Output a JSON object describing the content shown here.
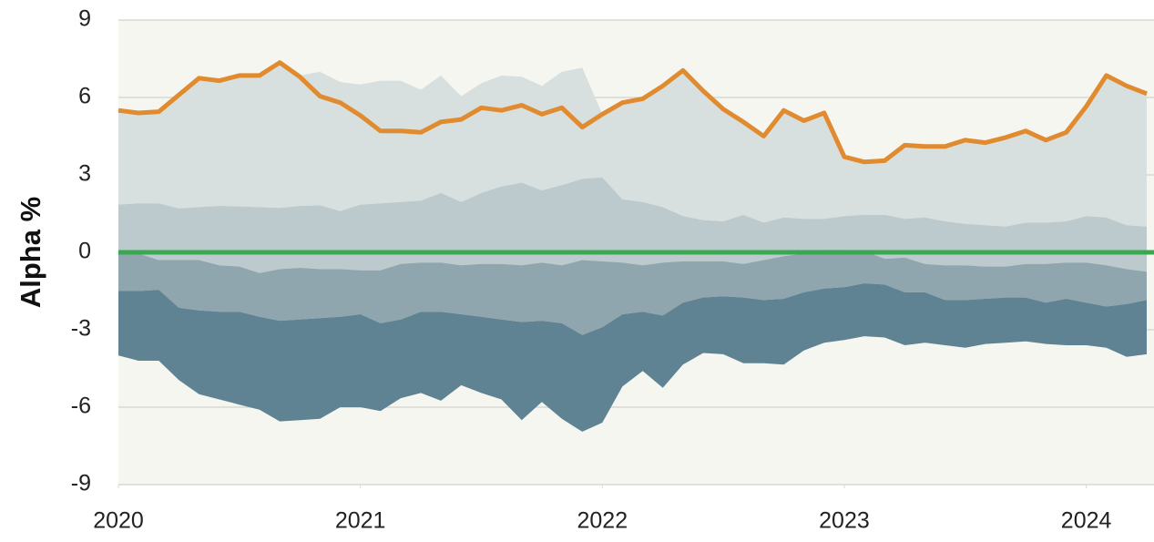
{
  "chart_data": {
    "type": "band",
    "y_label": "Alpha %",
    "x": [
      2020,
      2020.083,
      2020.167,
      2020.25,
      2020.333,
      2020.417,
      2020.5,
      2020.583,
      2020.667,
      2020.75,
      2020.833,
      2020.917,
      2021,
      2021.083,
      2021.167,
      2021.25,
      2021.333,
      2021.417,
      2021.5,
      2021.583,
      2021.667,
      2021.75,
      2021.833,
      2021.917,
      2022,
      2022.083,
      2022.167,
      2022.25,
      2022.333,
      2022.417,
      2022.5,
      2022.583,
      2022.667,
      2022.75,
      2022.833,
      2022.917,
      2023,
      2023.083,
      2023.167,
      2023.25,
      2023.333,
      2023.417,
      2023.5,
      2023.583,
      2023.667,
      2023.75,
      2023.833,
      2023.917,
      2024,
      2024.083,
      2024.167,
      2024.25
    ],
    "xlim": [
      2020,
      2024.28
    ],
    "xticks": [
      2020,
      2021,
      2022,
      2023,
      2024
    ],
    "ylim": [
      -9,
      9
    ],
    "yticks": [
      -9,
      -6,
      -3,
      0,
      3,
      6,
      9
    ],
    "grid": true,
    "background": "#f6f6f1",
    "band_colors": [
      "#d8e0df",
      "#bccacd",
      "#8fa6ae",
      "#5f8392"
    ],
    "boundaries": [
      [
        5.5,
        5.4,
        5.45,
        6.1,
        6.75,
        6.65,
        6.85,
        6.85,
        7.35,
        6.85,
        7.0,
        6.6,
        6.5,
        6.65,
        6.65,
        6.3,
        6.85,
        6.05,
        6.55,
        6.85,
        6.8,
        6.45,
        7.0,
        7.15,
        5.35,
        5.8,
        5.95,
        6.45,
        7.05,
        6.25,
        5.55,
        5.05,
        4.5,
        5.5,
        5.1,
        5.4,
        3.7,
        3.5,
        3.55,
        4.15,
        4.1,
        4.1,
        4.35,
        4.25,
        4.45,
        4.7,
        4.35,
        4.65,
        5.65,
        6.85,
        6.45,
        6.15
      ],
      [
        1.85,
        1.9,
        1.9,
        1.7,
        1.75,
        1.8,
        1.78,
        1.75,
        1.72,
        1.8,
        1.82,
        1.6,
        1.85,
        1.9,
        1.95,
        2.0,
        2.3,
        1.95,
        2.3,
        2.55,
        2.7,
        2.4,
        2.6,
        2.85,
        2.9,
        2.05,
        1.95,
        1.75,
        1.4,
        1.25,
        1.2,
        1.45,
        1.15,
        1.35,
        1.3,
        1.3,
        1.4,
        1.45,
        1.45,
        1.3,
        1.35,
        1.2,
        1.1,
        1.05,
        1.0,
        1.15,
        1.15,
        1.2,
        1.4,
        1.35,
        1.05,
        1.0
      ],
      [
        0,
        -0.05,
        -0.3,
        -0.3,
        -0.3,
        -0.5,
        -0.55,
        -0.8,
        -0.65,
        -0.6,
        -0.65,
        -0.65,
        -0.7,
        -0.7,
        -0.45,
        -0.4,
        -0.4,
        -0.5,
        -0.45,
        -0.45,
        -0.5,
        -0.4,
        -0.5,
        -0.3,
        -0.35,
        -0.4,
        -0.5,
        -0.4,
        -0.35,
        -0.35,
        -0.35,
        -0.45,
        -0.3,
        -0.15,
        -0.05,
        0.1,
        0.1,
        0.05,
        -0.25,
        -0.2,
        -0.45,
        -0.5,
        -0.5,
        -0.55,
        -0.55,
        -0.45,
        -0.45,
        -0.4,
        -0.4,
        -0.5,
        -0.65,
        -0.75
      ],
      [
        -1.5,
        -1.5,
        -1.45,
        -2.15,
        -2.25,
        -2.3,
        -2.3,
        -2.5,
        -2.65,
        -2.6,
        -2.55,
        -2.5,
        -2.4,
        -2.75,
        -2.6,
        -2.3,
        -2.3,
        -2.4,
        -2.5,
        -2.6,
        -2.7,
        -2.65,
        -2.75,
        -3.2,
        -2.9,
        -2.4,
        -2.3,
        -2.45,
        -1.95,
        -1.75,
        -1.7,
        -1.75,
        -1.85,
        -1.8,
        -1.55,
        -1.4,
        -1.35,
        -1.2,
        -1.25,
        -1.55,
        -1.55,
        -1.85,
        -1.85,
        -1.8,
        -1.75,
        -1.75,
        -1.95,
        -1.8,
        -1.95,
        -2.1,
        -2.0,
        -1.85
      ],
      [
        -4.0,
        -4.2,
        -4.2,
        -4.95,
        -5.5,
        -5.7,
        -5.9,
        -6.1,
        -6.55,
        -6.5,
        -6.45,
        -6.0,
        -6.0,
        -6.15,
        -5.65,
        -5.45,
        -5.75,
        -5.15,
        -5.45,
        -5.7,
        -6.5,
        -5.8,
        -6.45,
        -6.95,
        -6.6,
        -5.2,
        -4.6,
        -5.25,
        -4.35,
        -3.9,
        -3.95,
        -4.3,
        -4.3,
        -4.35,
        -3.8,
        -3.5,
        -3.4,
        -3.25,
        -3.3,
        -3.6,
        -3.5,
        -3.6,
        -3.7,
        -3.55,
        -3.5,
        -3.45,
        -3.55,
        -3.6,
        -3.6,
        -3.7,
        -4.05,
        -3.95
      ]
    ],
    "series": [
      {
        "color": "#e08b2f",
        "values": [
          5.5,
          5.4,
          5.45,
          6.1,
          6.75,
          6.65,
          6.85,
          6.85,
          7.35,
          6.8,
          6.05,
          5.8,
          5.3,
          4.7,
          4.7,
          4.65,
          5.05,
          5.15,
          5.6,
          5.5,
          5.7,
          5.35,
          5.6,
          4.85,
          5.35,
          5.8,
          5.95,
          6.45,
          7.05,
          6.25,
          5.55,
          5.05,
          4.5,
          5.5,
          5.1,
          5.4,
          3.7,
          3.5,
          3.55,
          4.15,
          4.1,
          4.1,
          4.35,
          4.25,
          4.45,
          4.7,
          4.35,
          4.65,
          5.65,
          6.85,
          6.45,
          6.15
        ]
      }
    ],
    "reference_line": {
      "value": 0,
      "color": "#3aa84e"
    }
  }
}
